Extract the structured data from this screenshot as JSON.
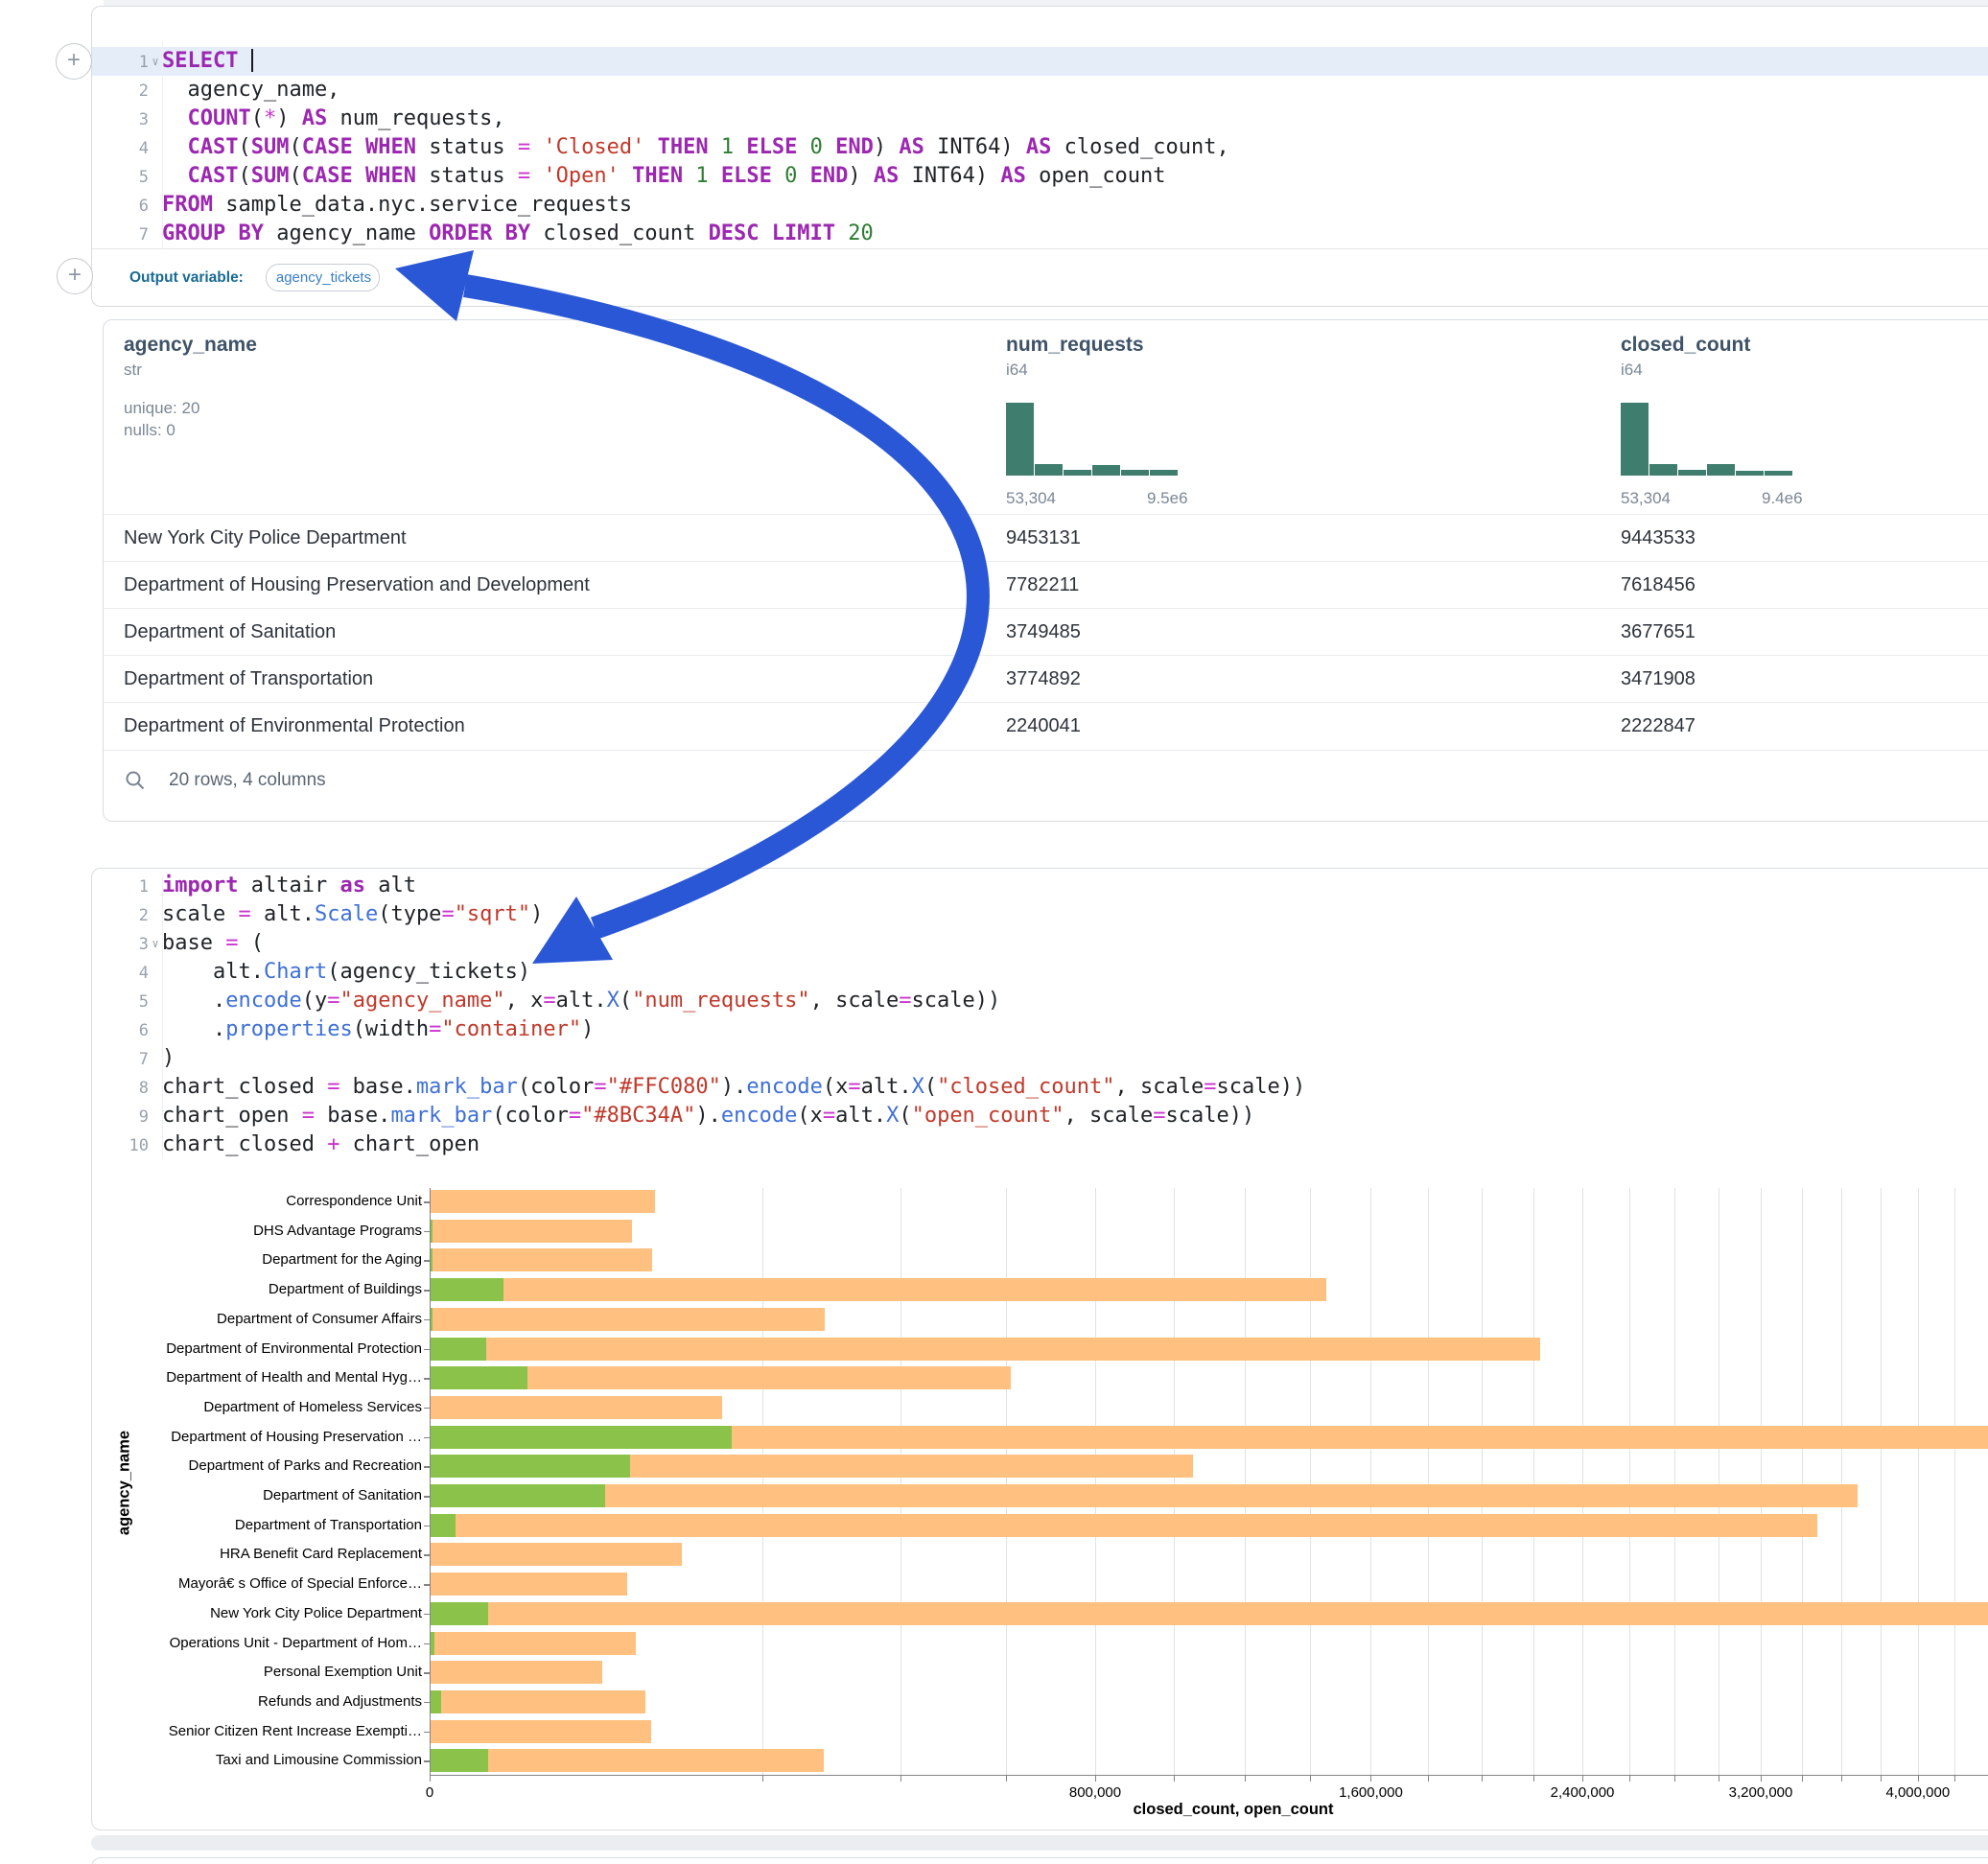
{
  "ui": {
    "plus": "+"
  },
  "colors": {
    "arrow": "#2a57d6",
    "closed_bar": "#FFC080",
    "open_bar": "#8BC34A",
    "histogram": "#3f7e6e",
    "keyword": "#9c27b0",
    "string": "#c0392b",
    "number": "#2e7d32",
    "function": "#3e6fd6"
  },
  "sql_cell": {
    "lines": [
      {
        "n": "1",
        "caret": true,
        "hl": true,
        "tokens": [
          [
            "k",
            "SELECT"
          ],
          [
            "t",
            " "
          ],
          [
            "c",
            ""
          ]
        ]
      },
      {
        "n": "2",
        "tokens": [
          [
            "t",
            "  agency_name,"
          ]
        ]
      },
      {
        "n": "3",
        "tokens": [
          [
            "t",
            "  "
          ],
          [
            "k",
            "COUNT"
          ],
          [
            "t",
            "("
          ],
          [
            "o",
            "*"
          ],
          [
            "t",
            ") "
          ],
          [
            "k",
            "AS"
          ],
          [
            "t",
            " num_requests,"
          ]
        ]
      },
      {
        "n": "4",
        "tokens": [
          [
            "t",
            "  "
          ],
          [
            "k",
            "CAST"
          ],
          [
            "t",
            "("
          ],
          [
            "k",
            "SUM"
          ],
          [
            "t",
            "("
          ],
          [
            "k",
            "CASE"
          ],
          [
            "t",
            " "
          ],
          [
            "k",
            "WHEN"
          ],
          [
            "t",
            " status "
          ],
          [
            "o",
            "="
          ],
          [
            "t",
            " "
          ],
          [
            "s",
            "'Closed'"
          ],
          [
            "t",
            " "
          ],
          [
            "k",
            "THEN"
          ],
          [
            "t",
            " "
          ],
          [
            "n",
            "1"
          ],
          [
            "t",
            " "
          ],
          [
            "k",
            "ELSE"
          ],
          [
            "t",
            " "
          ],
          [
            "n",
            "0"
          ],
          [
            "t",
            " "
          ],
          [
            "k",
            "END"
          ],
          [
            "t",
            ") "
          ],
          [
            "k",
            "AS"
          ],
          [
            "t",
            " INT64) "
          ],
          [
            "k",
            "AS"
          ],
          [
            "t",
            " closed_count,"
          ]
        ]
      },
      {
        "n": "5",
        "tokens": [
          [
            "t",
            "  "
          ],
          [
            "k",
            "CAST"
          ],
          [
            "t",
            "("
          ],
          [
            "k",
            "SUM"
          ],
          [
            "t",
            "("
          ],
          [
            "k",
            "CASE"
          ],
          [
            "t",
            " "
          ],
          [
            "k",
            "WHEN"
          ],
          [
            "t",
            " status "
          ],
          [
            "o",
            "="
          ],
          [
            "t",
            " "
          ],
          [
            "s",
            "'Open'"
          ],
          [
            "t",
            " "
          ],
          [
            "k",
            "THEN"
          ],
          [
            "t",
            " "
          ],
          [
            "n",
            "1"
          ],
          [
            "t",
            " "
          ],
          [
            "k",
            "ELSE"
          ],
          [
            "t",
            " "
          ],
          [
            "n",
            "0"
          ],
          [
            "t",
            " "
          ],
          [
            "k",
            "END"
          ],
          [
            "t",
            ") "
          ],
          [
            "k",
            "AS"
          ],
          [
            "t",
            " INT64) "
          ],
          [
            "k",
            "AS"
          ],
          [
            "t",
            " open_count"
          ]
        ]
      },
      {
        "n": "6",
        "tokens": [
          [
            "k",
            "FROM"
          ],
          [
            "t",
            " sample_data.nyc.service_requests"
          ]
        ]
      },
      {
        "n": "7",
        "tokens": [
          [
            "k",
            "GROUP BY"
          ],
          [
            "t",
            " agency_name "
          ],
          [
            "k",
            "ORDER BY"
          ],
          [
            "t",
            " closed_count "
          ],
          [
            "k",
            "DESC"
          ],
          [
            "t",
            " "
          ],
          [
            "k",
            "LIMIT"
          ],
          [
            "t",
            " "
          ],
          [
            "n",
            "20"
          ]
        ]
      }
    ]
  },
  "output_variable": {
    "label": "Output variable:",
    "value": "agency_tickets"
  },
  "table": {
    "columns": [
      {
        "name": "agency_name",
        "type": "str",
        "meta": [
          "unique: 20",
          "nulls: 0"
        ]
      },
      {
        "name": "num_requests",
        "type": "i64",
        "hist": [
          1,
          0.16,
          0.08,
          0.15,
          0.08,
          0.08
        ],
        "hist_min": "53,304",
        "hist_max": "9.5e6"
      },
      {
        "name": "closed_count",
        "type": "i64",
        "hist": [
          1,
          0.16,
          0.08,
          0.16,
          0.07,
          0.07
        ],
        "hist_min": "53,304",
        "hist_max": "9.4e6"
      }
    ],
    "rows": [
      [
        "New York City Police Department",
        "9453131",
        "9443533"
      ],
      [
        "Department of Housing Preservation and Development",
        "7782211",
        "7618456"
      ],
      [
        "Department of Sanitation",
        "3749485",
        "3677651"
      ],
      [
        "Department of Transportation",
        "3774892",
        "3471908"
      ],
      [
        "Department of Environmental Protection",
        "2240041",
        "2222847"
      ]
    ],
    "footer": "20 rows, 4 columns"
  },
  "python_cell": {
    "lines": [
      {
        "n": "1",
        "tokens": [
          [
            "k",
            "import"
          ],
          [
            "t",
            " altair "
          ],
          [
            "k",
            "as"
          ],
          [
            "t",
            " alt"
          ]
        ]
      },
      {
        "n": "2",
        "tokens": [
          [
            "t",
            "scale "
          ],
          [
            "o",
            "="
          ],
          [
            "t",
            " alt."
          ],
          [
            "f",
            "Scale"
          ],
          [
            "t",
            "(type"
          ],
          [
            "o",
            "="
          ],
          [
            "s",
            "\"sqrt\""
          ],
          [
            "t",
            ")"
          ]
        ]
      },
      {
        "n": "3",
        "caret": true,
        "tokens": [
          [
            "t",
            "base "
          ],
          [
            "o",
            "="
          ],
          [
            "t",
            " ("
          ]
        ]
      },
      {
        "n": "4",
        "tokens": [
          [
            "t",
            "    alt."
          ],
          [
            "f",
            "Chart"
          ],
          [
            "t",
            "(agency_tickets)"
          ]
        ]
      },
      {
        "n": "5",
        "tokens": [
          [
            "t",
            "    ."
          ],
          [
            "f",
            "encode"
          ],
          [
            "t",
            "(y"
          ],
          [
            "o",
            "="
          ],
          [
            "s",
            "\"agency_name\""
          ],
          [
            "t",
            ", x"
          ],
          [
            "o",
            "="
          ],
          [
            "t",
            "alt."
          ],
          [
            "f",
            "X"
          ],
          [
            "t",
            "("
          ],
          [
            "s",
            "\"num_requests\""
          ],
          [
            "t",
            ", scale"
          ],
          [
            "o",
            "="
          ],
          [
            "t",
            "scale))"
          ]
        ]
      },
      {
        "n": "6",
        "tokens": [
          [
            "t",
            "    ."
          ],
          [
            "f",
            "properties"
          ],
          [
            "t",
            "(width"
          ],
          [
            "o",
            "="
          ],
          [
            "s",
            "\"container\""
          ],
          [
            "t",
            ")"
          ]
        ]
      },
      {
        "n": "7",
        "tokens": [
          [
            "t",
            ")"
          ]
        ]
      },
      {
        "n": "8",
        "tokens": [
          [
            "t",
            "chart_closed "
          ],
          [
            "o",
            "="
          ],
          [
            "t",
            " base."
          ],
          [
            "f",
            "mark_bar"
          ],
          [
            "t",
            "(color"
          ],
          [
            "o",
            "="
          ],
          [
            "s",
            "\"#FFC080\""
          ],
          [
            "t",
            ")."
          ],
          [
            "f",
            "encode"
          ],
          [
            "t",
            "(x"
          ],
          [
            "o",
            "="
          ],
          [
            "t",
            "alt."
          ],
          [
            "f",
            "X"
          ],
          [
            "t",
            "("
          ],
          [
            "s",
            "\"closed_count\""
          ],
          [
            "t",
            ", scale"
          ],
          [
            "o",
            "="
          ],
          [
            "t",
            "scale))"
          ]
        ]
      },
      {
        "n": "9",
        "tokens": [
          [
            "t",
            "chart_open "
          ],
          [
            "o",
            "="
          ],
          [
            "t",
            " base."
          ],
          [
            "f",
            "mark_bar"
          ],
          [
            "t",
            "(color"
          ],
          [
            "o",
            "="
          ],
          [
            "s",
            "\"#8BC34A\""
          ],
          [
            "t",
            ")."
          ],
          [
            "f",
            "encode"
          ],
          [
            "t",
            "(x"
          ],
          [
            "o",
            "="
          ],
          [
            "t",
            "alt."
          ],
          [
            "f",
            "X"
          ],
          [
            "t",
            "("
          ],
          [
            "s",
            "\"open_count\""
          ],
          [
            "t",
            ", scale"
          ],
          [
            "o",
            "="
          ],
          [
            "t",
            "scale))"
          ]
        ]
      },
      {
        "n": "10",
        "tokens": [
          [
            "t",
            "chart_closed "
          ],
          [
            "o",
            "+"
          ],
          [
            "t",
            " chart_open"
          ]
        ]
      }
    ]
  },
  "chart_data": {
    "type": "bar",
    "orientation": "horizontal",
    "x_scale": "sqrt",
    "xlabel": "closed_count, open_count",
    "ylabel": "agency_name",
    "x_tick_values": [
      0,
      800000,
      1600000,
      2400000,
      3200000,
      4000000
    ],
    "x_tick_labels": [
      "0",
      "800,000",
      "1,600,000",
      "2,400,000",
      "3,200,000",
      "4,000,000"
    ],
    "grid_step": 200000,
    "x_visible_max": 4400000,
    "grid": true,
    "categories": [
      "Correspondence Unit",
      "DHS Advantage Programs",
      "Department for the Aging",
      "Department of Buildings",
      "Department of Consumer Affairs",
      "Department of Environmental Protection",
      "Department of Health and Mental Hyg…",
      "Department of Homeless Services",
      "Department of Housing Preservation …",
      "Department of Parks and Recreation",
      "Department of Sanitation",
      "Department of Transportation",
      "HRA Benefit Card Replacement",
      "Mayorâ€ s Office of Special Enforce…",
      "New York City Police Department",
      "Operations Unit - Department of Hom…",
      "Personal Exemption Unit",
      "Refunds and Adjustments",
      "Senior Citizen Rent Increase Exempti…",
      "Taxi and Limousine Commission"
    ],
    "series": [
      {
        "name": "closed_count",
        "color": "#FFC080",
        "values": [
          91000,
          73000,
          89000,
          1450000,
          280000,
          2222847,
          608000,
          153000,
          7618456,
          1050000,
          3677651,
          3471908,
          114000,
          70000,
          9443533,
          76000,
          53000,
          83000,
          88000,
          279000
        ]
      },
      {
        "name": "open_count",
        "color": "#8BC34A",
        "values": [
          0,
          10,
          10,
          9600,
          10,
          5600,
          17000,
          0,
          163755,
          72000,
          55000,
          1100,
          0,
          0,
          6000,
          30,
          0,
          200,
          0,
          6000
        ]
      }
    ]
  }
}
